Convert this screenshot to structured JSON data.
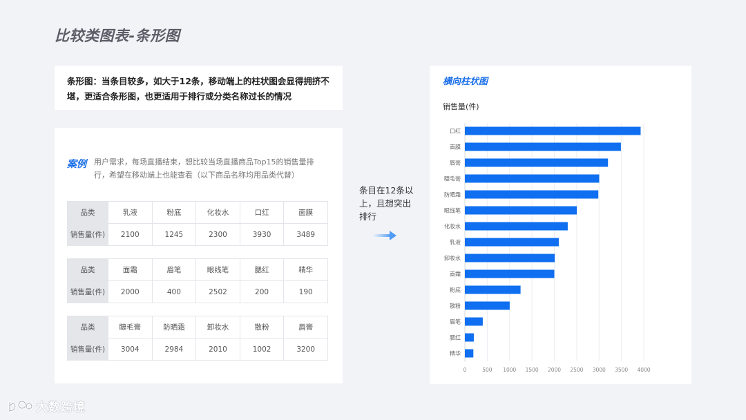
{
  "page": {
    "title": "比较类图表-条形图"
  },
  "intro": {
    "text": "条形图：当条目较多，如大于12条，移动端上的柱状图会显得拥挤不堪，更适合条形图，也更适用于排行或分类名称过长的情况"
  },
  "case": {
    "label": "案例",
    "description": "用户需求，每场直播结束，想比较当场直播商品Top15的销售量排行，希望在移动端上也能查看（以下商品名称均用品类代替）"
  },
  "tables": [
    {
      "header_label": "品类",
      "value_label": "销售量(件)",
      "categories": [
        "乳液",
        "粉底",
        "化妆水",
        "口红",
        "面膜"
      ],
      "values": [
        "2100",
        "1245",
        "2300",
        "3930",
        "3489"
      ]
    },
    {
      "header_label": "品类",
      "value_label": "销售量(件)",
      "categories": [
        "面霜",
        "眉笔",
        "眼线笔",
        "腮红",
        "精华"
      ],
      "values": [
        "2000",
        "400",
        "2502",
        "200",
        "190"
      ]
    },
    {
      "header_label": "品类",
      "value_label": "销售量(件)",
      "categories": [
        "睫毛膏",
        "防晒霜",
        "卸妆水",
        "散粉",
        "唇膏"
      ],
      "values": [
        "3004",
        "2984",
        "2010",
        "1002",
        "3200"
      ]
    }
  ],
  "transition": {
    "text": "条目在12条以上，且想突出排行"
  },
  "logo": {
    "text": "大数跨境"
  },
  "colors": {
    "accent": "#1a6fe8",
    "bar": "#0f6ff0",
    "background": "#f1f3f7"
  },
  "chart_data": {
    "type": "bar",
    "orientation": "horizontal",
    "title": "横向柱状图",
    "ylabel": "销售量(件)",
    "categories": [
      "口红",
      "面膜",
      "唇膏",
      "睫毛膏",
      "防晒霜",
      "眼线笔",
      "化妆水",
      "乳液",
      "卸妆水",
      "面霜",
      "粉底",
      "散粉",
      "眉笔",
      "腮红",
      "精华"
    ],
    "values": [
      3930,
      3489,
      3200,
      3004,
      2984,
      2502,
      2300,
      2100,
      2010,
      2000,
      1245,
      1002,
      400,
      200,
      190
    ],
    "xlim": [
      0,
      4000
    ],
    "xticks": [
      "0",
      "500",
      "1000",
      "1500",
      "2000",
      "2500",
      "3000",
      "3500",
      "4000"
    ],
    "grid": true
  }
}
